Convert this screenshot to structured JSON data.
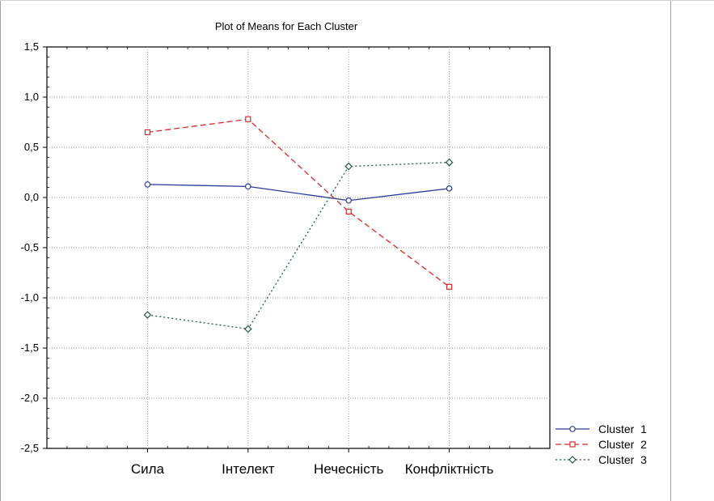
{
  "chart_data": {
    "type": "line",
    "title": "Plot of Means for Each Cluster",
    "xlabel": "",
    "ylabel": "",
    "categories": [
      "Сила",
      "Інтелект",
      "Нечесність",
      "Конфліктність"
    ],
    "ylim": [
      -2.5,
      1.5
    ],
    "yticks": [
      1.5,
      1.0,
      0.5,
      0.0,
      -0.5,
      -1.0,
      -1.5,
      -2.0,
      -2.5
    ],
    "ytick_labels": [
      "1,5",
      "1,0",
      "0,5",
      "0,0",
      "-0,5",
      "-1,0",
      "-1,5",
      "-2,0",
      "-2,5"
    ],
    "grid": true,
    "legend_position": "bottom-right",
    "series": [
      {
        "name": "Cluster  1",
        "values": [
          0.13,
          0.11,
          -0.03,
          0.09
        ],
        "color": "#2a3a9c",
        "line": "solid",
        "marker": "circle"
      },
      {
        "name": "Cluster  2",
        "values": [
          0.65,
          0.78,
          -0.14,
          -0.89
        ],
        "color": "#d42a2a",
        "line": "dashed",
        "marker": "square"
      },
      {
        "name": "Cluster  3",
        "values": [
          -1.17,
          -1.31,
          0.31,
          0.35
        ],
        "color": "#1e5a3c",
        "line": "dotted",
        "marker": "diamond"
      }
    ]
  }
}
